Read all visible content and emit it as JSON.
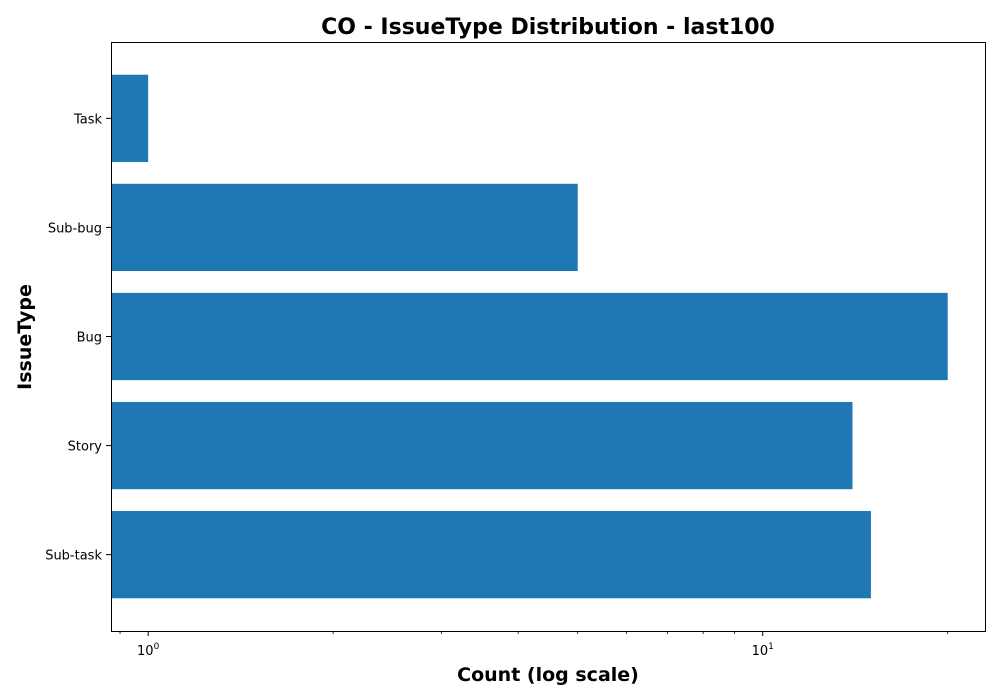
{
  "chart_data": {
    "type": "bar",
    "orientation": "horizontal",
    "title": "CO - IssueType Distribution - last100",
    "xlabel": "Count (log scale)",
    "ylabel": "IssueType",
    "x_scale": "log",
    "xlim": [
      0.87,
      23
    ],
    "x_ticks": [
      {
        "value": 1,
        "base": "10",
        "exp": "0"
      },
      {
        "value": 10,
        "base": "10",
        "exp": "1"
      }
    ],
    "categories": [
      "Task",
      "Sub-bug",
      "Bug",
      "Story",
      "Sub-task"
    ],
    "values": [
      1,
      5,
      20,
      14,
      15
    ],
    "bar_color": "#1f77b4",
    "grid": false,
    "legend": false
  }
}
